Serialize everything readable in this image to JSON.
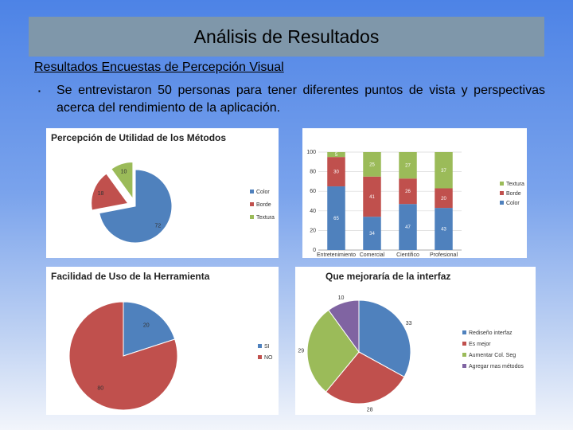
{
  "slide": {
    "title": "Análisis de Resultados",
    "subtitle": "Resultados Encuestas de Percepción Visual",
    "bullet_marker": "▪",
    "bullet_text": "Se entrevistaron 50 personas para tener diferentes puntos de vista y perspectivas acerca del rendimiento de la aplicación."
  },
  "chart_data": [
    {
      "type": "pie",
      "title": "Percepción de Utilidad de los Métodos",
      "categories": [
        "Color",
        "Borde",
        "Textura"
      ],
      "values": [
        72,
        18,
        10
      ],
      "colors": [
        "#4f81bd",
        "#c0504d",
        "#9bbb59"
      ],
      "exploded": true,
      "legend": "right"
    },
    {
      "type": "bar",
      "stacked": true,
      "categories": [
        "Entretenimiento",
        "Comercial",
        "Cientifico",
        "Profesional"
      ],
      "series": [
        {
          "name": "Color",
          "values": [
            65,
            34,
            47,
            43
          ],
          "color": "#4f81bd"
        },
        {
          "name": "Borde",
          "values": [
            30,
            41,
            26,
            20
          ],
          "color": "#c0504d"
        },
        {
          "name": "Textura",
          "values": [
            5,
            25,
            27,
            37
          ],
          "color": "#9bbb59"
        }
      ],
      "ylim": [
        0,
        100
      ],
      "yticks": [
        0,
        20,
        40,
        60,
        80,
        100
      ],
      "legend_order": [
        "Textura",
        "Borde",
        "Color"
      ],
      "legend": "right",
      "grid": true
    },
    {
      "type": "pie",
      "title": "Facilidad de Uso de la Herramienta",
      "categories": [
        "SI",
        "NO"
      ],
      "values": [
        20,
        80
      ],
      "colors": [
        "#4f81bd",
        "#c0504d"
      ],
      "legend": "right"
    },
    {
      "type": "pie",
      "title": "Que mejoraría de la interfaz",
      "categories": [
        "Rediseño interfaz",
        "Es mejor",
        "Aumentar Col. Seg",
        "Agregar mas métodos"
      ],
      "values": [
        33,
        28,
        29,
        10
      ],
      "colors": [
        "#4f81bd",
        "#c0504d",
        "#9bbb59",
        "#8064a2"
      ],
      "legend": "right"
    }
  ]
}
